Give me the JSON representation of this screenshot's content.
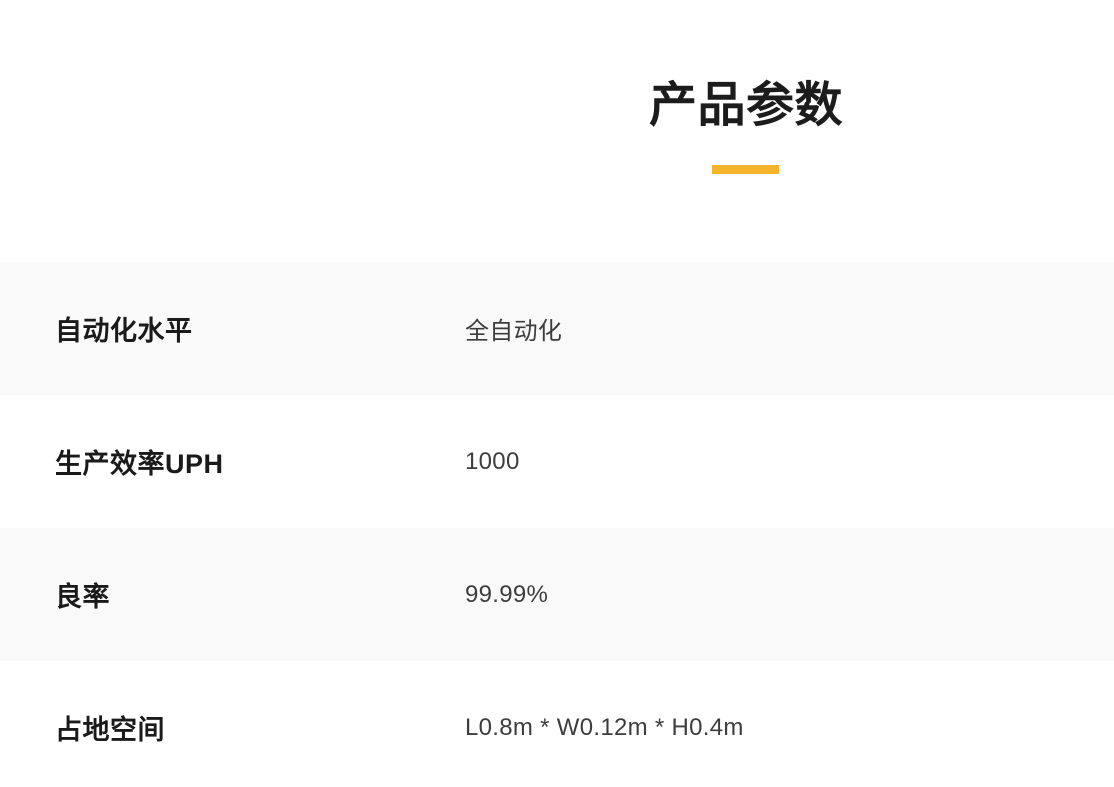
{
  "page": {
    "title": "产品参数",
    "accent_color": "#F5B42C"
  },
  "parameters": {
    "rows": [
      {
        "label": "自动化水平",
        "value": "全自动化"
      },
      {
        "label": "生产效率UPH",
        "value": "1000"
      },
      {
        "label": "良率",
        "value": "99.99%"
      },
      {
        "label": "占地空间",
        "value": "L0.8m * W0.12m * H0.4m"
      }
    ]
  }
}
